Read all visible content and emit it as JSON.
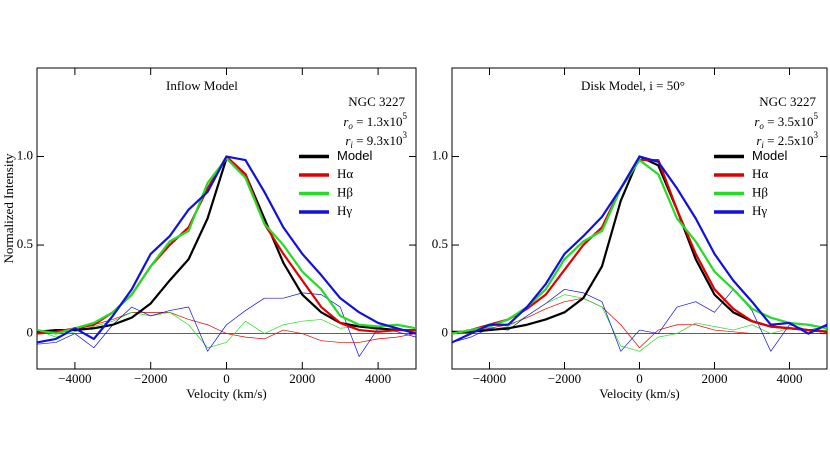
{
  "chart_data": [
    {
      "type": "line",
      "title": "Inflow Model",
      "object": "NGC 3227",
      "params": [
        {
          "symbol": "r",
          "sub": "o",
          "text": " = 1.3x10",
          "sup": "5"
        },
        {
          "symbol": "r",
          "sub": "i",
          "text": " = 9.3x10",
          "sup": "3"
        }
      ],
      "x_label": "Velocity (km/s)",
      "y_label": "Normalized Intensity",
      "x": [
        -5000,
        -4500,
        -4000,
        -3500,
        -3000,
        -2500,
        -2000,
        -1500,
        -1000,
        -500,
        0,
        500,
        1000,
        1500,
        2000,
        2500,
        3000,
        3500,
        4000,
        4500,
        5000
      ],
      "series": [
        {
          "name": "Model",
          "color": "#000000",
          "values": [
            0.01,
            0.02,
            0.02,
            0.03,
            0.05,
            0.09,
            0.17,
            0.3,
            0.42,
            0.65,
            0.99,
            0.9,
            0.65,
            0.4,
            0.22,
            0.12,
            0.06,
            0.04,
            0.03,
            0.02,
            0.02
          ]
        },
        {
          "name": "Hα",
          "color": "#e00000",
          "values": [
            0.0,
            0.01,
            0.03,
            0.05,
            0.12,
            0.22,
            0.38,
            0.5,
            0.6,
            0.82,
            1.0,
            0.9,
            0.62,
            0.45,
            0.3,
            0.15,
            0.06,
            0.02,
            0.01,
            0.02,
            0.02
          ]
        },
        {
          "name": "Hβ",
          "color": "#22dd22",
          "values": [
            0.02,
            0.0,
            0.03,
            0.06,
            0.12,
            0.22,
            0.38,
            0.52,
            0.58,
            0.85,
            0.99,
            0.88,
            0.62,
            0.5,
            0.35,
            0.25,
            0.1,
            0.05,
            0.04,
            0.05,
            0.03
          ]
        },
        {
          "name": "Hγ",
          "color": "#1010e0",
          "values": [
            -0.05,
            -0.03,
            0.03,
            -0.03,
            0.1,
            0.25,
            0.45,
            0.55,
            0.7,
            0.8,
            1.0,
            0.98,
            0.8,
            0.6,
            0.45,
            0.33,
            0.2,
            0.12,
            0.06,
            0.03,
            0.0
          ]
        }
      ],
      "residuals": [
        {
          "color": "#e00000",
          "values": [
            0,
            0,
            0.02,
            0.05,
            0.08,
            0.12,
            0.12,
            0.12,
            0.08,
            0.05,
            0.0,
            -0.02,
            -0.03,
            0.02,
            0.0,
            -0.04,
            -0.05,
            -0.05,
            -0.03,
            -0.02,
            0.0
          ]
        },
        {
          "color": "#22dd22",
          "values": [
            0.02,
            -0.02,
            0.01,
            0.04,
            0.07,
            0.12,
            0.1,
            0.12,
            0.05,
            -0.08,
            -0.05,
            0.07,
            0.0,
            0.05,
            0.07,
            0.08,
            0.03,
            0.04,
            0.02,
            0.03,
            0.01
          ]
        },
        {
          "color": "#1010e0",
          "values": [
            -0.06,
            -0.05,
            0.0,
            -0.08,
            0.05,
            0.15,
            0.1,
            0.13,
            0.15,
            -0.1,
            0.05,
            0.13,
            0.2,
            0.2,
            0.23,
            0.22,
            0.15,
            -0.13,
            0.03,
            0.01,
            -0.02
          ]
        }
      ],
      "xlim": [
        -5000,
        5000
      ],
      "ylim": [
        -0.2,
        1.5
      ],
      "xticks": [
        {
          "value": -4000,
          "label": "−4000"
        },
        {
          "value": -2000,
          "label": "−2000"
        },
        0,
        2000,
        4000
      ],
      "yticks": [
        0,
        0.5,
        {
          "value": 1,
          "label": "1.0"
        }
      ]
    },
    {
      "type": "line",
      "title": "Disk Model, i = 50°",
      "object": "NGC 3227",
      "params": [
        {
          "symbol": "r",
          "sub": "o",
          "text": " = 3.5x10",
          "sup": "5"
        },
        {
          "symbol": "r",
          "sub": "i",
          "text": " = 2.5x10",
          "sup": "3"
        }
      ],
      "x_label": "Velocity (km/s)",
      "x": [
        -5000,
        -4500,
        -4000,
        -3500,
        -3000,
        -2500,
        -2000,
        -1500,
        -1000,
        -500,
        0,
        500,
        1000,
        1500,
        2000,
        2500,
        3000,
        3500,
        4000,
        4500,
        5000
      ],
      "series": [
        {
          "name": "Model",
          "color": "#000000",
          "values": [
            0.01,
            0.01,
            0.02,
            0.03,
            0.05,
            0.08,
            0.12,
            0.2,
            0.38,
            0.75,
            1.0,
            0.95,
            0.7,
            0.42,
            0.22,
            0.12,
            0.07,
            0.04,
            0.03,
            0.02,
            0.01
          ]
        },
        {
          "name": "Hα",
          "color": "#e00000",
          "values": [
            0.0,
            0.02,
            0.05,
            0.08,
            0.14,
            0.22,
            0.36,
            0.5,
            0.6,
            0.82,
            0.98,
            0.98,
            0.7,
            0.45,
            0.25,
            0.14,
            0.07,
            0.04,
            0.03,
            0.02,
            0.01
          ]
        },
        {
          "name": "Hβ",
          "color": "#22dd22",
          "values": [
            0.0,
            0.02,
            0.04,
            0.08,
            0.15,
            0.25,
            0.42,
            0.52,
            0.58,
            0.82,
            0.98,
            0.9,
            0.65,
            0.52,
            0.35,
            0.25,
            0.14,
            0.09,
            0.06,
            0.05,
            0.03
          ]
        },
        {
          "name": "Hγ",
          "color": "#1010e0",
          "values": [
            -0.05,
            0.0,
            0.05,
            0.05,
            0.15,
            0.28,
            0.45,
            0.55,
            0.66,
            0.82,
            1.0,
            0.97,
            0.82,
            0.65,
            0.45,
            0.3,
            0.18,
            0.05,
            0.06,
            0.0,
            0.05
          ]
        }
      ],
      "residuals": [
        {
          "color": "#e00000",
          "values": [
            0,
            0.01,
            0.03,
            0.05,
            0.09,
            0.14,
            0.18,
            0.2,
            0.15,
            0.05,
            -0.08,
            0.02,
            0.05,
            0.05,
            0.02,
            0.01,
            0.0,
            0.0,
            0.0,
            0,
            0
          ]
        },
        {
          "color": "#22dd22",
          "values": [
            0,
            0.01,
            0.02,
            0.04,
            0.1,
            0.17,
            0.22,
            0.2,
            0.15,
            -0.07,
            -0.1,
            -0.02,
            0.0,
            0.06,
            0.04,
            0.02,
            0.05,
            0.0,
            0.03,
            0.02,
            0.02
          ]
        },
        {
          "color": "#1010e0",
          "values": [
            -0.05,
            -0.02,
            0.03,
            0.02,
            0.1,
            0.17,
            0.25,
            0.23,
            0.18,
            -0.1,
            0.02,
            0.0,
            0.15,
            0.18,
            0.12,
            0.25,
            0.13,
            -0.1,
            0.05,
            0.02,
            0.04
          ]
        }
      ],
      "xlim": [
        -5000,
        5000
      ],
      "ylim": [
        -0.2,
        1.5
      ],
      "xticks": [
        {
          "value": -4000,
          "label": "−4000"
        },
        {
          "value": -2000,
          "label": "−2000"
        },
        0,
        2000,
        4000
      ],
      "yticks": [
        0,
        0.5,
        {
          "value": 1,
          "label": "1.0"
        }
      ]
    }
  ]
}
